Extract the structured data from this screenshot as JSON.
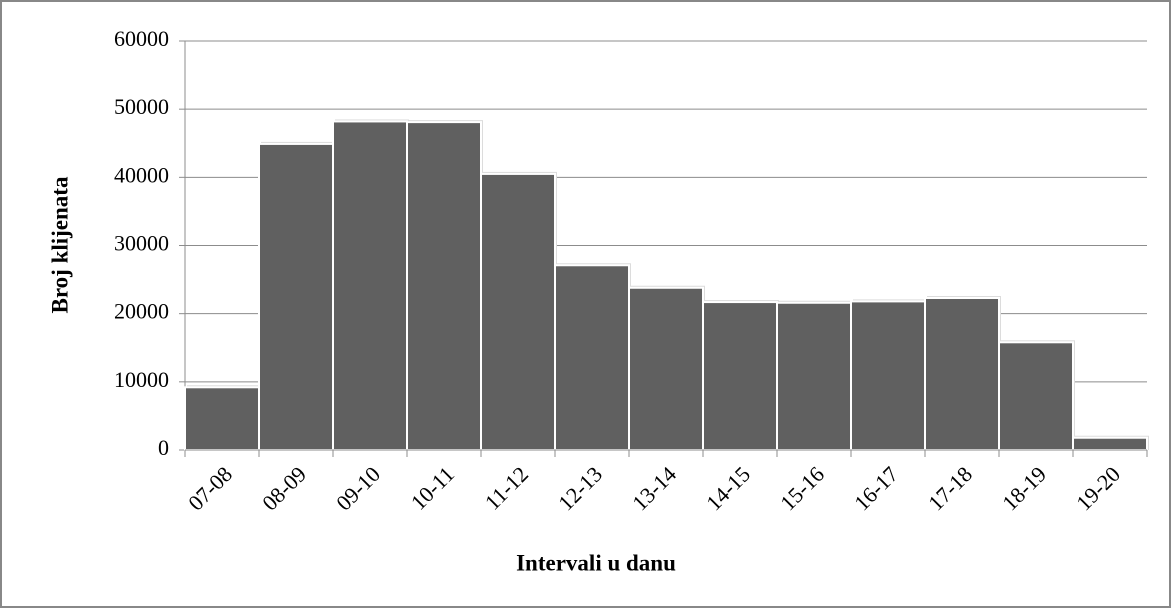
{
  "chart_data": {
    "type": "bar",
    "x_label": "Intervali u danu",
    "y_label": "Broj klijenata",
    "categories": [
      "07-08",
      "08-09",
      "09-10",
      "10-11",
      "11-12",
      "12-13",
      "13-14",
      "14-15",
      "15-16",
      "16-17",
      "17-18",
      "18-19",
      "19-20"
    ],
    "values": [
      9200,
      44900,
      48200,
      48100,
      40500,
      27100,
      23800,
      21700,
      21600,
      21800,
      22300,
      15800,
      1800
    ],
    "color": "#606060",
    "ylim": [
      0,
      60000
    ],
    "yticks": [
      0,
      10000,
      20000,
      30000,
      40000,
      50000,
      60000
    ],
    "grid": true
  }
}
